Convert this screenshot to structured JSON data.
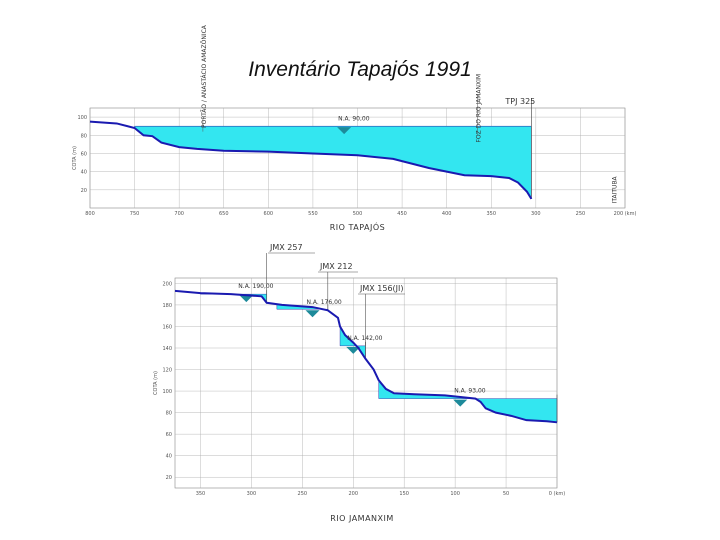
{
  "title": "Inventário Tapajós 1991",
  "chart_data": [
    {
      "type": "area",
      "title": "",
      "xlabel": "RIO TAPAJÓS",
      "ylabel": "COTA (m)",
      "x_ticks": [
        "800",
        "750",
        "700",
        "650",
        "600",
        "550",
        "500",
        "450",
        "400",
        "350",
        "300",
        "250",
        "200 (km)"
      ],
      "y_ticks": [
        "100",
        "80",
        "60",
        "40",
        "20"
      ],
      "profile_points": [
        [
          800,
          95
        ],
        [
          770,
          93
        ],
        [
          750,
          88
        ],
        [
          740,
          80
        ],
        [
          730,
          79
        ],
        [
          720,
          72
        ],
        [
          700,
          67
        ],
        [
          680,
          65
        ],
        [
          650,
          63
        ],
        [
          600,
          62
        ],
        [
          550,
          60
        ],
        [
          500,
          58
        ],
        [
          460,
          54
        ],
        [
          420,
          44
        ],
        [
          400,
          40
        ],
        [
          380,
          36
        ],
        [
          350,
          35
        ],
        [
          330,
          33
        ],
        [
          320,
          28
        ],
        [
          310,
          18
        ],
        [
          305,
          10
        ]
      ],
      "reservoir": {
        "from_km": 750,
        "to_km": 305,
        "water_level": 90
      },
      "annotations": [
        {
          "text": "PORTÃO / ANASTÁCIO AMAZÔNICA",
          "km": 670,
          "vertical": true
        },
        {
          "text": "N.A. 90,00",
          "km": 515
        },
        {
          "text": "FOZ DO RIO JAMANXIM",
          "km": 362,
          "vertical": true
        },
        {
          "text": "TPJ 325",
          "km": 305
        },
        {
          "text": "ITAITUBA",
          "km": 225,
          "vertical": true
        }
      ]
    },
    {
      "type": "area",
      "title": "",
      "xlabel": "RIO JAMANXIM",
      "ylabel": "COTA (m)",
      "x_ticks": [
        "350",
        "300",
        "250",
        "200",
        "150",
        "100",
        "50",
        "0 (km)"
      ],
      "y_ticks": [
        "200",
        "180",
        "160",
        "140",
        "120",
        "100",
        "80",
        "60",
        "40",
        "20"
      ],
      "profile_points": [
        [
          375,
          193
        ],
        [
          350,
          191
        ],
        [
          320,
          190
        ],
        [
          290,
          188
        ],
        [
          285,
          182
        ],
        [
          270,
          180
        ],
        [
          240,
          178
        ],
        [
          225,
          175
        ],
        [
          215,
          168
        ],
        [
          213,
          160
        ],
        [
          208,
          152
        ],
        [
          200,
          145
        ],
        [
          195,
          140
        ],
        [
          188,
          130
        ],
        [
          180,
          120
        ],
        [
          175,
          110
        ],
        [
          168,
          102
        ],
        [
          160,
          98
        ],
        [
          140,
          97
        ],
        [
          110,
          96
        ],
        [
          80,
          93
        ],
        [
          75,
          90
        ],
        [
          70,
          84
        ],
        [
          60,
          80
        ],
        [
          45,
          77
        ],
        [
          30,
          73
        ],
        [
          10,
          72
        ],
        [
          0,
          71
        ]
      ],
      "reservoirs": [
        {
          "from_km": 350,
          "to_km": 285,
          "water_level": 190
        },
        {
          "from_km": 275,
          "to_km": 225,
          "water_level": 176
        },
        {
          "from_km": 213,
          "to_km": 188,
          "water_level": 142
        },
        {
          "from_km": 175,
          "to_km": 0,
          "water_level": 93
        }
      ],
      "annotations": [
        {
          "text": "JMX 257",
          "km": 285
        },
        {
          "text": "JMX 212",
          "km": 225
        },
        {
          "text": "JMX 156(JI)",
          "km": 188
        },
        {
          "text": "N.A. 190,00",
          "km": 310
        },
        {
          "text": "N.A. 176,00",
          "km": 240
        },
        {
          "text": "N.A. 142,00",
          "km": 200
        },
        {
          "text": "N.A. 93,00",
          "km": 95
        }
      ]
    }
  ]
}
